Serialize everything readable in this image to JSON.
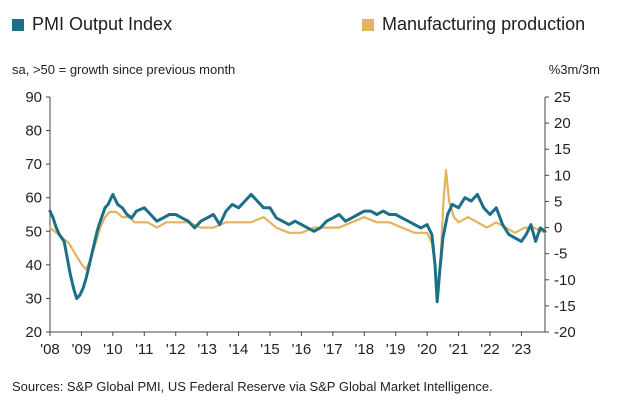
{
  "legend": {
    "pmi_label": "PMI Output Index",
    "mfg_label": "Manufacturing production"
  },
  "left_axis_note": "sa, >50 = growth since previous month",
  "right_axis_note": "%3m/3m",
  "source": "Sources: S&P Global PMI, US Federal Reserve via S&P Global Market Intelligence.",
  "colors": {
    "pmi": "#1b6f86",
    "mfg": "#e3b45e",
    "axis": "#444444",
    "text": "#222222"
  },
  "chart_data": {
    "type": "line",
    "x_ticks": [
      "'08",
      "'09",
      "'10",
      "'11",
      "'12",
      "'13",
      "'14",
      "'15",
      "'16",
      "'17",
      "'18",
      "'19",
      "'20",
      "'21",
      "'22",
      "'23"
    ],
    "x_range": [
      2008,
      2023.75
    ],
    "y_left": {
      "lim": [
        20,
        90
      ],
      "ticks": [
        20,
        30,
        40,
        50,
        60,
        70,
        80,
        90
      ]
    },
    "y_right": {
      "lim": [
        -20,
        25
      ],
      "ticks": [
        -20,
        -15,
        -10,
        -5,
        0,
        5,
        10,
        15,
        20,
        25
      ]
    },
    "series": [
      {
        "name": "PMI Output Index",
        "axis": "left",
        "x": [
          2008.0,
          2008.1,
          2008.2,
          2008.3,
          2008.45,
          2008.55,
          2008.65,
          2008.75,
          2008.85,
          2008.95,
          2009.05,
          2009.15,
          2009.25,
          2009.35,
          2009.5,
          2009.6,
          2009.75,
          2009.85,
          2010.0,
          2010.15,
          2010.3,
          2010.45,
          2010.6,
          2010.75,
          2011.0,
          2011.2,
          2011.4,
          2011.6,
          2011.8,
          2012.0,
          2012.2,
          2012.4,
          2012.6,
          2012.8,
          2013.0,
          2013.2,
          2013.4,
          2013.6,
          2013.8,
          2014.0,
          2014.2,
          2014.4,
          2014.6,
          2014.8,
          2015.0,
          2015.2,
          2015.4,
          2015.6,
          2015.8,
          2016.0,
          2016.2,
          2016.4,
          2016.6,
          2016.8,
          2017.0,
          2017.2,
          2017.4,
          2017.6,
          2017.8,
          2018.0,
          2018.2,
          2018.4,
          2018.6,
          2018.8,
          2019.0,
          2019.2,
          2019.4,
          2019.6,
          2019.8,
          2020.0,
          2020.15,
          2020.25,
          2020.32,
          2020.4,
          2020.5,
          2020.65,
          2020.8,
          2021.0,
          2021.2,
          2021.4,
          2021.6,
          2021.8,
          2022.0,
          2022.2,
          2022.4,
          2022.6,
          2022.8,
          2023.0,
          2023.15,
          2023.3,
          2023.45,
          2023.6,
          2023.75
        ],
        "y": [
          56,
          54,
          51,
          49,
          47,
          42,
          37,
          33,
          30,
          31,
          33,
          36,
          40,
          44,
          50,
          53,
          57,
          58,
          61,
          58,
          57,
          55,
          54,
          56,
          57,
          55,
          53,
          54,
          55,
          55,
          54,
          53,
          51,
          53,
          54,
          55,
          52,
          56,
          58,
          57,
          59,
          61,
          59,
          57,
          57,
          54,
          53,
          52,
          53,
          52,
          51,
          50,
          51,
          53,
          54,
          55,
          53,
          54,
          55,
          56,
          56,
          55,
          56,
          55,
          55,
          54,
          53,
          52,
          51,
          52,
          49,
          40,
          29,
          38,
          48,
          55,
          58,
          57,
          60,
          59,
          61,
          57,
          55,
          57,
          52,
          49,
          48,
          47,
          49,
          52,
          47,
          51,
          50
        ]
      },
      {
        "name": "Manufacturing production",
        "axis": "right",
        "x": [
          2008.0,
          2008.2,
          2008.4,
          2008.6,
          2008.8,
          2009.0,
          2009.15,
          2009.3,
          2009.45,
          2009.6,
          2009.75,
          2009.9,
          2010.1,
          2010.3,
          2010.5,
          2010.7,
          2010.9,
          2011.1,
          2011.4,
          2011.7,
          2012.0,
          2012.4,
          2012.8,
          2013.2,
          2013.6,
          2014.0,
          2014.4,
          2014.8,
          2015.2,
          2015.6,
          2016.0,
          2016.4,
          2016.8,
          2017.2,
          2017.6,
          2018.0,
          2018.4,
          2018.8,
          2019.2,
          2019.6,
          2020.0,
          2020.15,
          2020.25,
          2020.32,
          2020.42,
          2020.52,
          2020.6,
          2020.7,
          2020.85,
          2021.0,
          2021.3,
          2021.6,
          2021.9,
          2022.2,
          2022.5,
          2022.8,
          2023.1,
          2023.4,
          2023.75
        ],
        "y": [
          0,
          -1,
          -2,
          -3,
          -5,
          -7,
          -8,
          -6,
          -3,
          0,
          2,
          3,
          3,
          2,
          2,
          1,
          1,
          1,
          0,
          1,
          1,
          1,
          0,
          0,
          1,
          1,
          1,
          2,
          0,
          -1,
          -1,
          0,
          0,
          0,
          1,
          2,
          1,
          1,
          0,
          -1,
          -1,
          -3,
          -7,
          -14,
          -7,
          5,
          11,
          5,
          2,
          1,
          2,
          1,
          0,
          1,
          0,
          -1,
          0,
          0,
          -1
        ]
      }
    ]
  }
}
